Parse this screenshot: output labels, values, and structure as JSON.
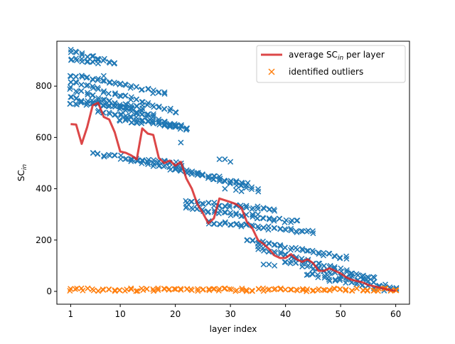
{
  "chart_data": {
    "type": "scatter",
    "xlabel": "layer index",
    "ylabel": "SC",
    "ylabel_sub": "in",
    "xlim": [
      -1.5,
      62.5
    ],
    "ylim": [
      -50,
      975
    ],
    "xticks": [
      1,
      10,
      20,
      30,
      40,
      50,
      60
    ],
    "yticks": [
      0,
      200,
      400,
      600,
      800
    ],
    "grid": false,
    "legend_placement": "top-right",
    "legend": [
      {
        "label_pre": "average SC",
        "label_sub": "in",
        "label_post": " per layer",
        "kind": "line"
      },
      {
        "label_pre": "identified outliers",
        "label_sub": "",
        "label_post": "",
        "kind": "marker"
      }
    ],
    "series": [
      {
        "name": "average SC_in per layer",
        "kind": "line",
        "x": [
          1,
          2,
          3,
          4,
          5,
          6,
          7,
          8,
          9,
          10,
          11,
          12,
          13,
          14,
          15,
          16,
          17,
          18,
          19,
          20,
          21,
          22,
          23,
          24,
          25,
          26,
          27,
          28,
          29,
          30,
          31,
          32,
          33,
          34,
          35,
          36,
          37,
          38,
          39,
          40,
          41,
          42,
          43,
          44,
          45,
          46,
          47,
          48,
          49,
          50,
          51,
          52,
          53,
          54,
          55,
          56,
          57,
          58,
          59,
          60
        ],
        "y": [
          652,
          650,
          575,
          640,
          725,
          735,
          680,
          670,
          620,
          545,
          540,
          530,
          515,
          635,
          615,
          610,
          520,
          500,
          510,
          490,
          505,
          440,
          400,
          340,
          305,
          265,
          285,
          362,
          355,
          348,
          340,
          325,
          270,
          245,
          200,
          185,
          165,
          140,
          130,
          130,
          145,
          125,
          115,
          125,
          110,
          80,
          80,
          90,
          80,
          70,
          55,
          45,
          40,
          35,
          25,
          20,
          15,
          10,
          5,
          2
        ]
      },
      {
        "name": "scatter_points",
        "kind": "marker",
        "color": "#1f77b4",
        "bands": [
          {
            "x0": 1,
            "x1": 9,
            "y0": 935,
            "y1": 890
          },
          {
            "x0": 1,
            "x1": 6,
            "y0": 905,
            "y1": 895
          },
          {
            "x0": 1,
            "x1": 18,
            "y0": 845,
            "y1": 770
          },
          {
            "x0": 1,
            "x1": 20,
            "y0": 820,
            "y1": 700
          },
          {
            "x0": 1,
            "x1": 22,
            "y0": 790,
            "y1": 630
          },
          {
            "x0": 1,
            "x1": 16,
            "y0": 755,
            "y1": 690
          },
          {
            "x0": 1,
            "x1": 14,
            "y0": 735,
            "y1": 720
          },
          {
            "x0": 6,
            "x1": 22,
            "y0": 700,
            "y1": 640
          },
          {
            "x0": 10,
            "x1": 20,
            "y0": 670,
            "y1": 645
          },
          {
            "x0": 5,
            "x1": 21,
            "y0": 535,
            "y1": 495
          },
          {
            "x0": 12,
            "x1": 33,
            "y0": 510,
            "y1": 420
          },
          {
            "x0": 20,
            "x1": 35,
            "y0": 480,
            "y1": 395
          },
          {
            "x0": 22,
            "x1": 38,
            "y0": 350,
            "y1": 320
          },
          {
            "x0": 22,
            "x1": 42,
            "y0": 325,
            "y1": 270
          },
          {
            "x0": 26,
            "x1": 45,
            "y0": 270,
            "y1": 230
          },
          {
            "x0": 33,
            "x1": 51,
            "y0": 200,
            "y1": 130
          },
          {
            "x0": 35,
            "x1": 56,
            "y0": 170,
            "y1": 50
          },
          {
            "x0": 40,
            "x1": 60,
            "y0": 120,
            "y1": 10
          },
          {
            "x0": 44,
            "x1": 59,
            "y0": 70,
            "y1": 5
          }
        ],
        "points": [
          [
            7,
            840
          ],
          [
            21,
            580
          ],
          [
            28,
            515
          ],
          [
            29,
            515
          ],
          [
            30,
            505
          ],
          [
            29,
            400
          ],
          [
            31,
            395
          ],
          [
            32,
            390
          ],
          [
            36,
            105
          ],
          [
            37,
            105
          ],
          [
            38,
            100
          ],
          [
            34,
            300
          ],
          [
            35,
            300
          ],
          [
            48,
            40
          ]
        ]
      },
      {
        "name": "identified outliers",
        "kind": "marker",
        "color": "#ff7f0e",
        "x_range": [
          1,
          60
        ],
        "y_range": [
          0,
          12
        ]
      }
    ]
  }
}
